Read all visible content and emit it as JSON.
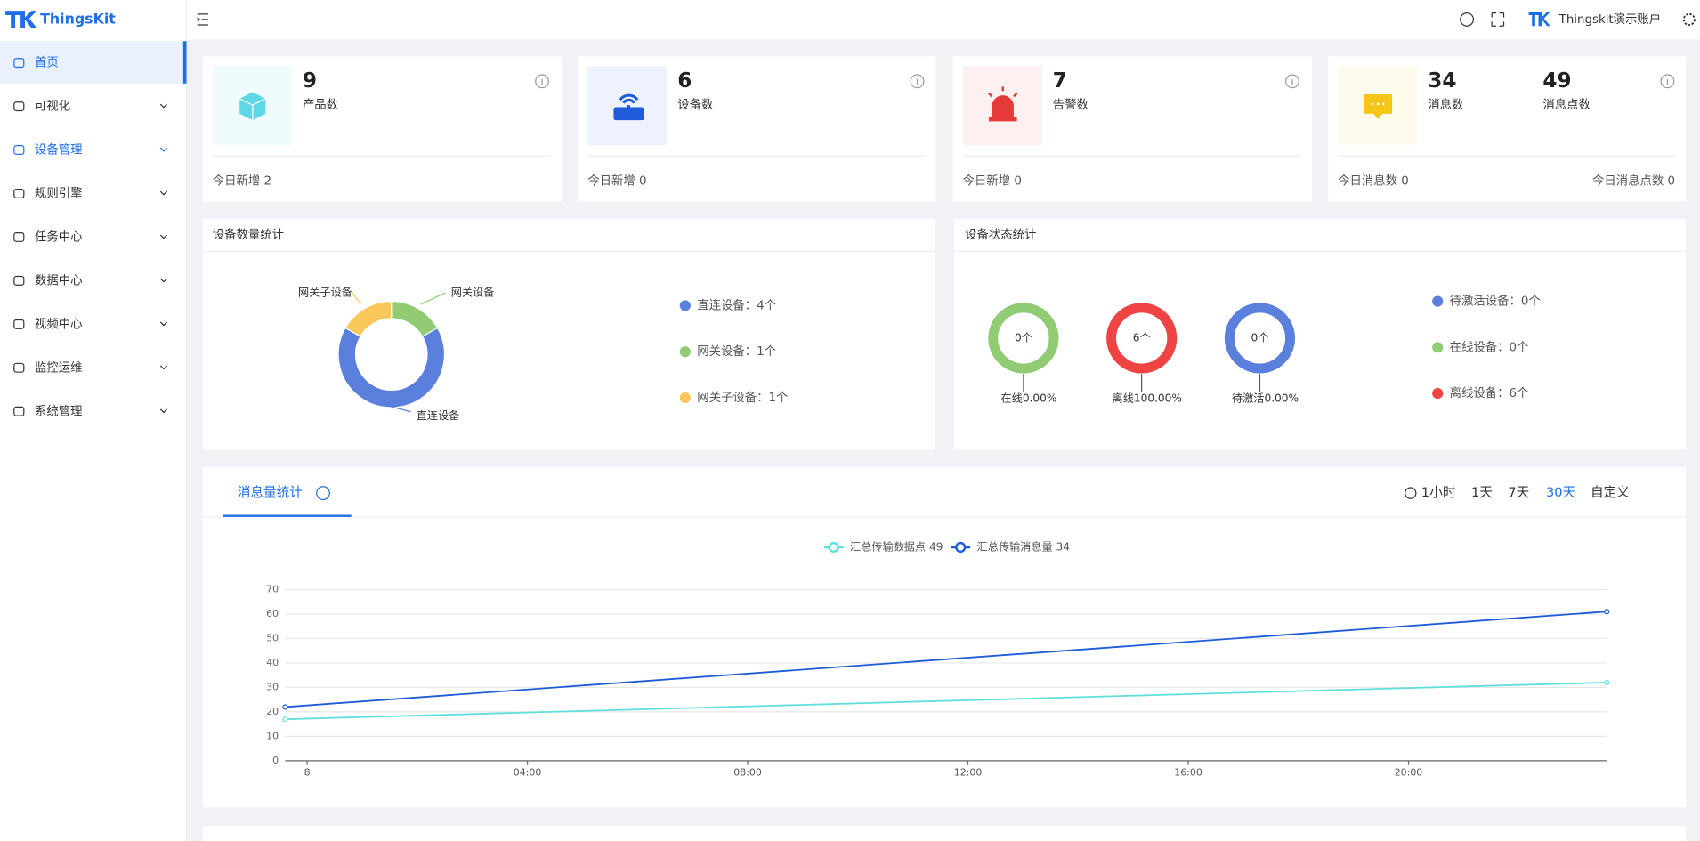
{
  "sidebar": {
    "logo": "ThingsKit",
    "menu": [
      "首页",
      "可视化",
      "设备管理",
      "规则引擎",
      "任务中心",
      "数据中心",
      "视频中心",
      "监控运维",
      "系统管理"
    ]
  },
  "header": {
    "account": "Thingskit演示账户"
  },
  "cards": [
    {
      "value": 9,
      "label": "产品数",
      "footer": "今日新增 2"
    },
    {
      "value": 6,
      "label": "设备数",
      "footer": "今日新增 0"
    },
    {
      "value": 7,
      "label": "告警数",
      "footer": "今日新增 0"
    },
    {
      "value": 34,
      "label": "消息数",
      "value2": 49,
      "label2": "消息点数",
      "footer": "今日消息数 0",
      "footer2": "今日消息点数 0"
    }
  ],
  "chart_data": [
    {
      "type": "pie",
      "title": "设备数量统计",
      "categories": [
        "直连设备",
        "网关设备",
        "网关子设备"
      ],
      "values": [
        4,
        1,
        1
      ],
      "colors": [
        "#5b7fdc",
        "#91cc75",
        "#fac858"
      ],
      "legend_labels": [
        "直连设备：4个",
        "网关设备：1个",
        "网关子设备：1个"
      ]
    },
    {
      "type": "ring",
      "title": "设备状态统计",
      "values": [
        0,
        6,
        0
      ],
      "value_labels": [
        "0个",
        "6个",
        "0个"
      ],
      "captions": [
        "在线0.00%",
        "离线100.00%",
        "待激活0.00%"
      ],
      "colors": [
        "#91cc75",
        "#ee4444",
        "#5b7fdc"
      ],
      "legend_labels": [
        "待激活设备：0个",
        "在线设备：0个",
        "离线设备：6个"
      ],
      "legend_colors": [
        "#5b7fdc",
        "#91cc75",
        "#ee4444"
      ]
    },
    {
      "type": "line",
      "tab": "消息量统计",
      "ranges": [
        "1小时",
        "1天",
        "7天",
        "30天",
        "自定义"
      ],
      "x": [
        -0.4,
        23.6
      ],
      "xlim": [
        -0.4,
        23.6
      ],
      "xticks": [
        {
          "value": 0,
          "label": "8"
        },
        {
          "value": 4,
          "label": "04:00"
        },
        {
          "value": 8,
          "label": "08:00"
        },
        {
          "value": 12,
          "label": "12:00"
        },
        {
          "value": 16,
          "label": "16:00"
        },
        {
          "value": 20,
          "label": "20:00"
        }
      ],
      "ylim": [
        0,
        70
      ],
      "yticks": [
        0,
        10,
        20,
        30,
        40,
        50,
        60,
        70
      ],
      "grid": true,
      "series": [
        {
          "name": "汇总传输数据点 49",
          "color": "#5fe0dd",
          "values": [
            17,
            32
          ]
        },
        {
          "name": "汇总传输消息量 34",
          "color": "#1e5bd8",
          "values": [
            22,
            61
          ]
        }
      ]
    }
  ]
}
